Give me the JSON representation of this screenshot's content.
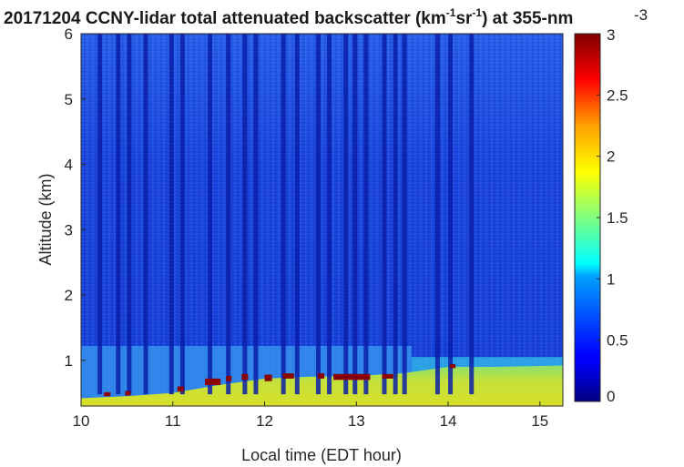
{
  "figure": {
    "title_prefix": "20171204 CCNY-lidar total attenuated backscatter (km",
    "title_sup1": "-1",
    "title_mid": "sr",
    "title_sup2": "-1",
    "title_suffix": ") at 355-nm",
    "colorbar_exponent": "-3"
  },
  "colors": {
    "background_field": "#1a3fd6",
    "boundary_layer": "#cfe02a",
    "cloud": "#8b0000",
    "axis": "#262626"
  },
  "chart_data": {
    "type": "heatmap",
    "colormap": "jet",
    "x_label": "Local time (EDT hour)",
    "y_label": "Altitude (km)",
    "x_range": [
      10,
      15.25
    ],
    "y_range": [
      0.3,
      6
    ],
    "x_ticks": [
      "10",
      "11",
      "12",
      "13",
      "14",
      "15"
    ],
    "y_ticks": [
      "1",
      "2",
      "3",
      "4",
      "5",
      "6"
    ],
    "colorbar": {
      "range": [
        0,
        3
      ],
      "ticks": [
        "0",
        "0.5",
        "1",
        "1.5",
        "2",
        "2.5",
        "3"
      ],
      "exponent": "-3"
    },
    "features": {
      "residual_layer_top_km": 1.22,
      "residual_layer_end_hour": 13.6,
      "boundary_layer_top_km": [
        [
          10.0,
          0.42
        ],
        [
          10.5,
          0.45
        ],
        [
          11.0,
          0.5
        ],
        [
          11.5,
          0.62
        ],
        [
          12.0,
          0.72
        ],
        [
          12.5,
          0.75
        ],
        [
          13.0,
          0.76
        ],
        [
          13.5,
          0.8
        ],
        [
          14.0,
          0.9
        ],
        [
          14.5,
          0.9
        ],
        [
          15.25,
          0.92
        ]
      ],
      "cloud_patches": [
        {
          "t": [
            10.25,
            10.32
          ],
          "z": [
            0.45,
            0.51
          ]
        },
        {
          "t": [
            10.48,
            10.54
          ],
          "z": [
            0.46,
            0.53
          ]
        },
        {
          "t": [
            11.05,
            11.12
          ],
          "z": [
            0.52,
            0.6
          ]
        },
        {
          "t": [
            11.35,
            11.52
          ],
          "z": [
            0.62,
            0.72
          ]
        },
        {
          "t": [
            11.58,
            11.64
          ],
          "z": [
            0.68,
            0.76
          ]
        },
        {
          "t": [
            11.75,
            11.82
          ],
          "z": [
            0.7,
            0.79
          ]
        },
        {
          "t": [
            12.0,
            12.08
          ],
          "z": [
            0.68,
            0.78
          ]
        },
        {
          "t": [
            12.2,
            12.32
          ],
          "z": [
            0.72,
            0.8
          ]
        },
        {
          "t": [
            12.58,
            12.65
          ],
          "z": [
            0.72,
            0.8
          ]
        },
        {
          "t": [
            12.75,
            13.15
          ],
          "z": [
            0.7,
            0.79
          ]
        },
        {
          "t": [
            13.28,
            13.4
          ],
          "z": [
            0.72,
            0.79
          ]
        },
        {
          "t": [
            14.02,
            14.08
          ],
          "z": [
            0.88,
            0.94
          ]
        }
      ],
      "dark_column_hours": [
        10.2,
        10.4,
        10.52,
        10.7,
        10.98,
        11.1,
        11.4,
        11.6,
        11.78,
        11.9,
        12.2,
        12.35,
        12.58,
        12.7,
        12.88,
        12.98,
        13.1,
        13.3,
        13.42,
        13.52,
        13.88,
        14.02,
        14.25
      ]
    }
  }
}
